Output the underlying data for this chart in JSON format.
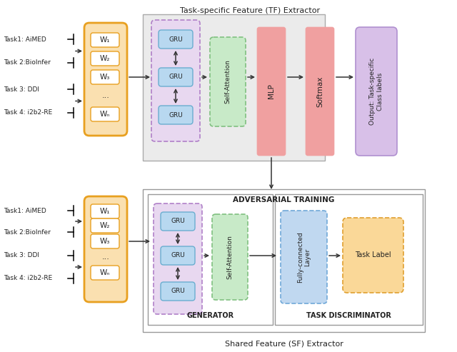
{
  "fig_width": 6.4,
  "fig_height": 4.93,
  "dpi": 100,
  "bg_color": "#ffffff",
  "task_labels_top": [
    "Task1: AiMED",
    "Task 2:BioInfer",
    "Task 3: DDI",
    "Task 4: i2b2-RE"
  ],
  "task_labels_bottom": [
    "Task1: AiMED",
    "Task 2:BioInfer",
    "Task 3: DDI",
    "Task 4: i2b2-RE"
  ],
  "w_texts": [
    "W₁",
    "W₂",
    "W₃",
    "...",
    "Wₙ"
  ],
  "colors": {
    "orange_border": "#E8A020",
    "orange_fill": "#FAE0B0",
    "blue_gru_fill": "#B8D8F0",
    "blue_gru_border": "#6AAED0",
    "green_sa_fill": "#C8EAC8",
    "green_sa_border": "#80C080",
    "pink_fill": "#F0A0A0",
    "pink_border": "#F0A0A0",
    "purple_out_fill": "#D8C0E8",
    "purple_out_border": "#B090D0",
    "gray_tf_fill": "#EBEBEB",
    "gray_tf_border": "#AAAAAA",
    "purple_gru_fill": "#E8D8F0",
    "purple_gru_border": "#B080C8",
    "gray_adv_fill": "#FFFFFF",
    "gray_adv_border": "#999999",
    "blue_fc_fill": "#C0D8F0",
    "blue_fc_border": "#70A8D8",
    "yellow_tl_fill": "#FAD898",
    "yellow_tl_border": "#E0A030"
  },
  "top_title": "Task-specific Feature (TF) Extractor",
  "adv_title": "ADVERSARIAL TRAINING",
  "bottom_caption": "Shared Feature (SF) Extractor",
  "generator_label": "GENERATOR",
  "task_disc_label": "TASK DISCRIMINATOR",
  "output_label": "Output: Task-specific\nClass labels",
  "mlp_label": "MLP",
  "softmax_label": "Softmax",
  "self_att_label": "Self-Attention",
  "gru_label": "GRU",
  "fc_label": "Fully-connected\nLayer",
  "task_label_text": "Task Label"
}
